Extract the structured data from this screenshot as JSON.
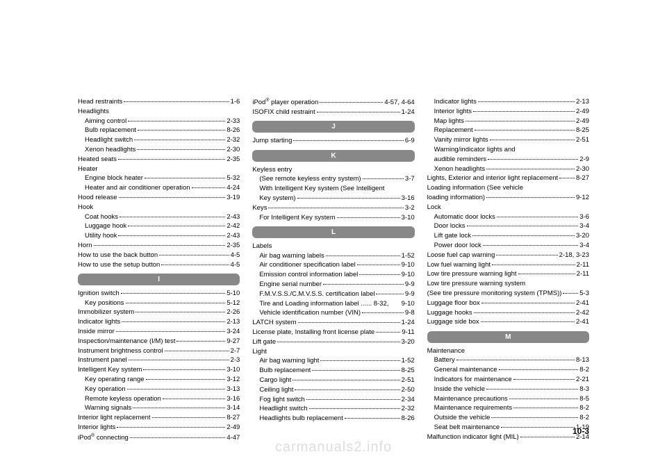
{
  "pageNumber": "10-3",
  "watermark": "carmanuals2.info",
  "columns": [
    {
      "items": [
        {
          "type": "entry",
          "label": "Head restraints",
          "page": "1-6",
          "indent": 0
        },
        {
          "type": "entry",
          "label": "Headlights",
          "page": "",
          "indent": 0
        },
        {
          "type": "entry",
          "label": "Aiming control",
          "page": "2-33",
          "indent": 1
        },
        {
          "type": "entry",
          "label": "Bulb replacement",
          "page": "8-26",
          "indent": 1
        },
        {
          "type": "entry",
          "label": "Headlight switch",
          "page": "2-32",
          "indent": 1
        },
        {
          "type": "entry",
          "label": "Xenon headlights",
          "page": "2-30",
          "indent": 1
        },
        {
          "type": "entry",
          "label": "Heated seats",
          "page": "2-35",
          "indent": 0
        },
        {
          "type": "entry",
          "label": "Heater",
          "page": "",
          "indent": 0
        },
        {
          "type": "entry",
          "label": "Engine block heater",
          "page": "5-32",
          "indent": 1
        },
        {
          "type": "entry",
          "label": "Heater and air conditioner operation",
          "page": "4-24",
          "indent": 1
        },
        {
          "type": "entry",
          "label": "Hood release",
          "page": "3-19",
          "indent": 0
        },
        {
          "type": "entry",
          "label": "Hook",
          "page": "",
          "indent": 0
        },
        {
          "type": "entry",
          "label": "Coat hooks",
          "page": "2-43",
          "indent": 1
        },
        {
          "type": "entry",
          "label": "Luggage hook",
          "page": "2-42",
          "indent": 1
        },
        {
          "type": "entry",
          "label": "Utility hook",
          "page": "2-43",
          "indent": 1
        },
        {
          "type": "entry",
          "label": "Horn",
          "page": "2-35",
          "indent": 0
        },
        {
          "type": "entry",
          "label": "How to use the back button",
          "page": "4-5",
          "indent": 0
        },
        {
          "type": "entry",
          "label": "How to use the setup button",
          "page": "4-5",
          "indent": 0
        },
        {
          "type": "header",
          "label": "I"
        },
        {
          "type": "entry",
          "label": "Ignition switch",
          "page": "5-10",
          "indent": 0
        },
        {
          "type": "entry",
          "label": "Key positions",
          "page": "5-12",
          "indent": 1
        },
        {
          "type": "entry",
          "label": "Immobilizer system",
          "page": "2-26",
          "indent": 0
        },
        {
          "type": "entry",
          "label": "Indicator lights",
          "page": "2-13",
          "indent": 0
        },
        {
          "type": "entry",
          "label": "Inside mirror",
          "page": "3-24",
          "indent": 0
        },
        {
          "type": "entry",
          "label": "Inspection/maintenance (I/M) test",
          "page": "9-27",
          "indent": 0
        },
        {
          "type": "entry",
          "label": "Instrument brightness control",
          "page": "2-7",
          "indent": 0
        },
        {
          "type": "entry",
          "label": "Instrument panel",
          "page": "2-3",
          "indent": 0
        },
        {
          "type": "entry",
          "label": "Intelligent Key system",
          "page": "3-10",
          "indent": 0
        },
        {
          "type": "entry",
          "label": "Key operating range",
          "page": "3-12",
          "indent": 1
        },
        {
          "type": "entry",
          "label": "Key operation",
          "page": "3-13",
          "indent": 1
        },
        {
          "type": "entry",
          "label": "Remote keyless operation",
          "page": "3-16",
          "indent": 1
        },
        {
          "type": "entry",
          "label": "Warning signals",
          "page": "3-14",
          "indent": 1
        },
        {
          "type": "entry",
          "label": "Interior light replacement",
          "page": "8-27",
          "indent": 0
        },
        {
          "type": "entry",
          "label": "Interior lights",
          "page": "2-49",
          "indent": 0
        },
        {
          "type": "entry",
          "label": "iPod® connecting",
          "page": "4-47",
          "indent": 0
        }
      ]
    },
    {
      "items": [
        {
          "type": "entry",
          "label": "iPod® player operation",
          "page": "4-57, 4-64",
          "indent": 0
        },
        {
          "type": "entry",
          "label": "ISOFIX child restraint",
          "page": "1-24",
          "indent": 0
        },
        {
          "type": "header",
          "label": "J"
        },
        {
          "type": "entry",
          "label": "Jump starting",
          "page": "6-9",
          "indent": 0
        },
        {
          "type": "header",
          "label": "K"
        },
        {
          "type": "entry",
          "label": "Keyless entry",
          "page": "",
          "indent": 0
        },
        {
          "type": "entry",
          "label": "(See remote keyless entry system)",
          "page": "3-7",
          "indent": 1
        },
        {
          "type": "entry",
          "label": "With Intelligent Key system (See Intelligent",
          "page": "",
          "indent": 1
        },
        {
          "type": "entry",
          "label": "Key system)",
          "page": "3-16",
          "indent": 1
        },
        {
          "type": "entry",
          "label": "Keys",
          "page": "3-2",
          "indent": 0
        },
        {
          "type": "entry",
          "label": "For Intelligent Key system",
          "page": "3-10",
          "indent": 1
        },
        {
          "type": "header",
          "label": "L"
        },
        {
          "type": "entry",
          "label": "Labels",
          "page": "",
          "indent": 0
        },
        {
          "type": "entry",
          "label": "Air bag warning labels",
          "page": "1-52",
          "indent": 1
        },
        {
          "type": "entry",
          "label": "Air conditioner specification label",
          "page": "9-10",
          "indent": 1
        },
        {
          "type": "entry",
          "label": "Emission control information label",
          "page": "9-10",
          "indent": 1
        },
        {
          "type": "entry",
          "label": "Engine serial number",
          "page": "9-9",
          "indent": 1
        },
        {
          "type": "entry",
          "label": "F.M.V.S.S./C.M.V.S.S. certification label",
          "page": "9-9",
          "indent": 1
        },
        {
          "type": "entry",
          "label": "Tire and Loading information label ...... 8-32,",
          "page": "9-10",
          "indent": 1,
          "nodots": true
        },
        {
          "type": "entry",
          "label": "Vehicle identification number (VIN)",
          "page": "9-8",
          "indent": 1
        },
        {
          "type": "entry",
          "label": "LATCH system",
          "page": "1-24",
          "indent": 0
        },
        {
          "type": "entry",
          "label": "License plate, Installing front license plate",
          "page": "9-11",
          "indent": 0
        },
        {
          "type": "entry",
          "label": "Lift gate",
          "page": "3-20",
          "indent": 0
        },
        {
          "type": "entry",
          "label": "Light",
          "page": "",
          "indent": 0
        },
        {
          "type": "entry",
          "label": "Air bag warning light",
          "page": "1-52",
          "indent": 1
        },
        {
          "type": "entry",
          "label": "Bulb replacement",
          "page": "8-25",
          "indent": 1
        },
        {
          "type": "entry",
          "label": "Cargo light",
          "page": "2-51",
          "indent": 1
        },
        {
          "type": "entry",
          "label": "Ceiling light",
          "page": "2-50",
          "indent": 1
        },
        {
          "type": "entry",
          "label": "Fog light switch",
          "page": "2-34",
          "indent": 1
        },
        {
          "type": "entry",
          "label": "Headlight switch",
          "page": "2-32",
          "indent": 1
        },
        {
          "type": "entry",
          "label": "Headlights bulb replacement",
          "page": "8-26",
          "indent": 1
        }
      ]
    },
    {
      "items": [
        {
          "type": "entry",
          "label": "Indicator lights",
          "page": "2-13",
          "indent": 1
        },
        {
          "type": "entry",
          "label": "Interior lights",
          "page": "2-49",
          "indent": 1
        },
        {
          "type": "entry",
          "label": "Map lights",
          "page": "2-49",
          "indent": 1
        },
        {
          "type": "entry",
          "label": "Replacement",
          "page": "8-25",
          "indent": 1
        },
        {
          "type": "entry",
          "label": "Vanity mirror lights",
          "page": "2-51",
          "indent": 1
        },
        {
          "type": "entry",
          "label": "Warning/indicator lights and",
          "page": "",
          "indent": 1
        },
        {
          "type": "entry",
          "label": "audible reminders",
          "page": "2-9",
          "indent": 1
        },
        {
          "type": "entry",
          "label": "Xenon headlights",
          "page": "2-30",
          "indent": 1
        },
        {
          "type": "entry",
          "label": "Lights, Exterior and interior light replacement",
          "page": "8-27",
          "indent": 0
        },
        {
          "type": "entry",
          "label": "Loading information (See vehicle",
          "page": "",
          "indent": 0
        },
        {
          "type": "entry",
          "label": "loading information)",
          "page": "9-12",
          "indent": 0
        },
        {
          "type": "entry",
          "label": "Lock",
          "page": "",
          "indent": 0
        },
        {
          "type": "entry",
          "label": "Automatic door locks",
          "page": "3-6",
          "indent": 1
        },
        {
          "type": "entry",
          "label": "Door locks",
          "page": "3-4",
          "indent": 1
        },
        {
          "type": "entry",
          "label": "Lift gate lock",
          "page": "3-20",
          "indent": 1
        },
        {
          "type": "entry",
          "label": "Power door lock",
          "page": "3-4",
          "indent": 1
        },
        {
          "type": "entry",
          "label": "Loose fuel cap warning",
          "page": "2-18, 3-23",
          "indent": 0
        },
        {
          "type": "entry",
          "label": "Low fuel warning light",
          "page": "2-11",
          "indent": 0
        },
        {
          "type": "entry",
          "label": "Low tire pressure warning light",
          "page": "2-11",
          "indent": 0
        },
        {
          "type": "entry",
          "label": "Low tire pressure warning system",
          "page": "",
          "indent": 0
        },
        {
          "type": "entry",
          "label": "(See tire pressure monitoring system (TPMS))",
          "page": "5-3",
          "indent": 0
        },
        {
          "type": "entry",
          "label": "Luggage floor box",
          "page": "2-41",
          "indent": 0
        },
        {
          "type": "entry",
          "label": "Luggage hooks",
          "page": "2-42",
          "indent": 0
        },
        {
          "type": "entry",
          "label": "Luggage side box",
          "page": "2-41",
          "indent": 0
        },
        {
          "type": "header",
          "label": "M"
        },
        {
          "type": "entry",
          "label": "Maintenance",
          "page": "",
          "indent": 0
        },
        {
          "type": "entry",
          "label": "Battery",
          "page": "8-13",
          "indent": 1
        },
        {
          "type": "entry",
          "label": "General maintenance",
          "page": "8-2",
          "indent": 1
        },
        {
          "type": "entry",
          "label": "Indicators for maintenance",
          "page": "2-21",
          "indent": 1
        },
        {
          "type": "entry",
          "label": "Inside the vehicle",
          "page": "8-3",
          "indent": 1
        },
        {
          "type": "entry",
          "label": "Maintenance precautions",
          "page": "8-5",
          "indent": 1
        },
        {
          "type": "entry",
          "label": "Maintenance requirements",
          "page": "8-2",
          "indent": 1
        },
        {
          "type": "entry",
          "label": "Outside the vehicle",
          "page": "8-2",
          "indent": 1
        },
        {
          "type": "entry",
          "label": "Seat belt maintenance",
          "page": "1-19",
          "indent": 1
        },
        {
          "type": "entry",
          "label": "Malfunction indicator light (MIL)",
          "page": "2-14",
          "indent": 0
        }
      ]
    }
  ]
}
